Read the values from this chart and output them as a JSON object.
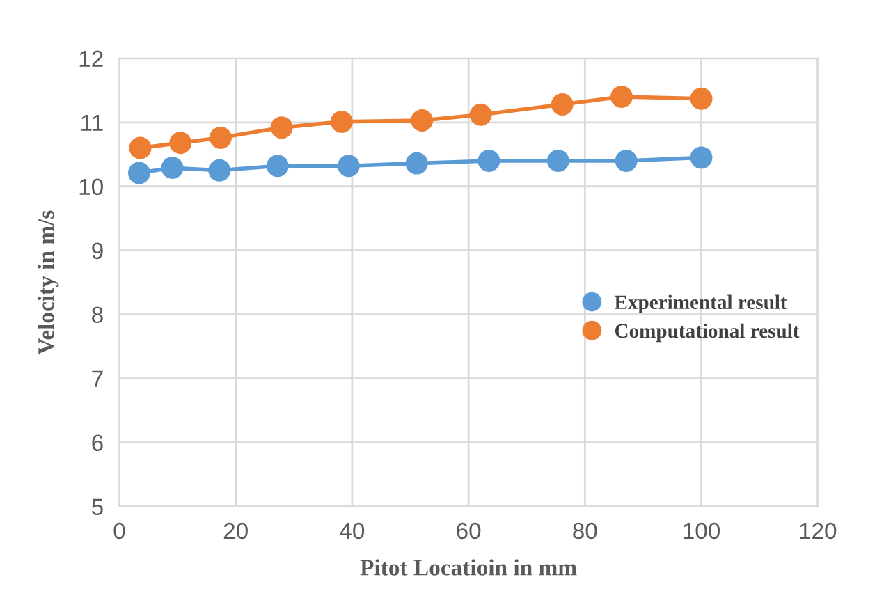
{
  "chart_data": {
    "type": "line",
    "xlabel": "Pitot Locatioin in mm",
    "ylabel": "Velocity in m/s",
    "series": [
      {
        "name": "Experimental result",
        "color": "#5b9bd5",
        "x": [
          3.4,
          9.1,
          17.2,
          27.2,
          39.4,
          51.1,
          63.5,
          75.4,
          87.1,
          100
        ],
        "values": [
          10.21,
          10.29,
          10.25,
          10.32,
          10.32,
          10.36,
          10.4,
          10.4,
          10.4,
          10.45
        ]
      },
      {
        "name": "Computational result",
        "color": "#ed7d31",
        "x": [
          3.6,
          10.5,
          17.4,
          27.9,
          38.2,
          52.0,
          62.1,
          76.1,
          86.3,
          100
        ],
        "values": [
          10.6,
          10.68,
          10.76,
          10.92,
          11.01,
          11.03,
          11.12,
          11.28,
          11.4,
          11.37
        ]
      }
    ],
    "xlim": [
      0,
      120
    ],
    "xticks": [
      0,
      20,
      40,
      60,
      80,
      100,
      120
    ],
    "ylim": [
      5,
      12
    ],
    "yticks": [
      5,
      6,
      7,
      8,
      9,
      10,
      11,
      12
    ],
    "grid": true,
    "legend": "right",
    "marker": "circle",
    "line_style": "solid"
  }
}
